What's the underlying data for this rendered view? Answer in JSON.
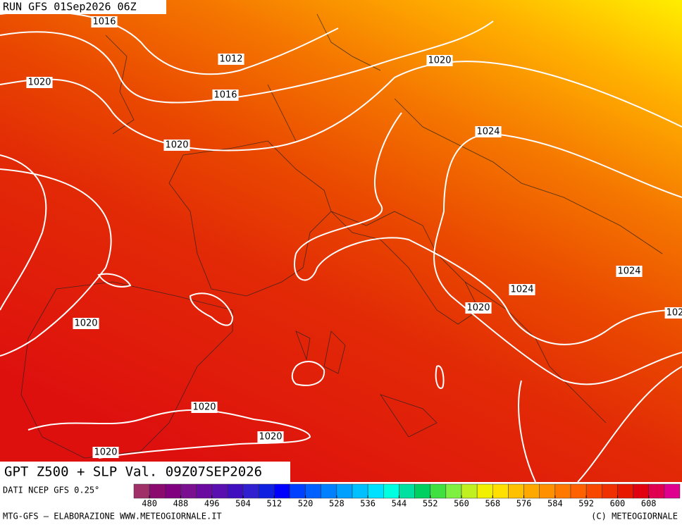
{
  "header": {
    "run": "RUN GFS 01Sep2026 06Z"
  },
  "isobar_labels": [
    "1016",
    "1012",
    "1020",
    "1016",
    "1020",
    "1024",
    "1020",
    "1024",
    "1024",
    "1020",
    "102",
    "1020",
    "1020",
    "1020",
    "1020"
  ],
  "title": "GPT Z500 + SLP Val. 09Z07SEP2026",
  "legend": {
    "source": "DATI NCEP GFS 0.25°",
    "ticks": [
      480,
      488,
      496,
      504,
      512,
      520,
      528,
      536,
      544,
      552,
      560,
      568,
      576,
      584,
      592,
      600,
      608
    ],
    "colors": [
      "#a03068",
      "#8b0a6e",
      "#800080",
      "#7a1090",
      "#6a0aa0",
      "#5a10b0",
      "#4010c0",
      "#3020d0",
      "#1020e0",
      "#0000ff",
      "#0040ff",
      "#0060ff",
      "#0080ff",
      "#00a0ff",
      "#00c0ff",
      "#00e0ff",
      "#00ffe0",
      "#00e0a0",
      "#00d060",
      "#40e040",
      "#80f040",
      "#c0f020",
      "#f0f000",
      "#ffe000",
      "#ffc000",
      "#ffa800",
      "#ff9000",
      "#ff7800",
      "#ff6000",
      "#f84800",
      "#f03000",
      "#e81800",
      "#e00010",
      "#e00050",
      "#e00090"
    ]
  },
  "footer": {
    "left": "MTG-GFS — ELABORAZIONE WWW.METEOGIORNALE.IT",
    "right": "(C) METEOGIORNALE"
  }
}
